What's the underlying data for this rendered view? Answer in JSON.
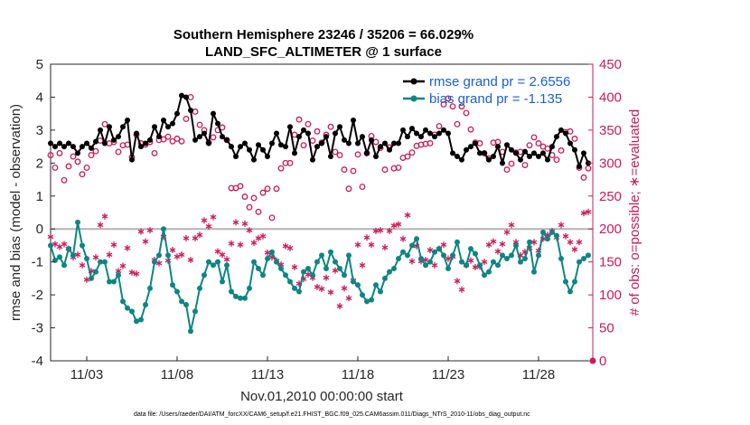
{
  "chart_data": {
    "type": "line",
    "title": "Southern Hemisphere 23246 / 35206 = 66.029%",
    "subtitle": "LAND_SFC_ALTIMETER @ 1 surface",
    "xlabel": "Nov.01,2010 00:00:00 start",
    "ylabel": "rmse and bias (model - observation)",
    "y2label": "# of obs: o=possible; ∗=evaluated",
    "footnote": "data file: /Users/raeder/DAI/ATM_forcXX/CAM6_setup/f.e21.FHIST_BGC.f09_025.CAM6assim.011/Diags_NTrS_2010-11/obs_diag_output.nc",
    "x_ticks": [
      "11/03",
      "11/08",
      "11/13",
      "11/18",
      "11/23",
      "11/28"
    ],
    "x_tick_days": [
      3,
      8,
      13,
      18,
      23,
      28
    ],
    "xlim": [
      1,
      31
    ],
    "ylim": [
      -4,
      5
    ],
    "y_ticks": [
      "-4",
      "-3",
      "-2",
      "-1",
      "0",
      "1",
      "2",
      "3",
      "4",
      "5"
    ],
    "y2lim": [
      0,
      450
    ],
    "y2_ticks": [
      "0",
      "50",
      "100",
      "150",
      "200",
      "250",
      "300",
      "350",
      "400",
      "450"
    ],
    "grid": false,
    "legend_position": "top-right",
    "colors": {
      "rmse": "#000000",
      "bias": "#0e8585",
      "obs": "#cc1a5a",
      "zero": "#b4b4b4"
    },
    "x": [
      1.0,
      1.25,
      1.5,
      1.75,
      2.0,
      2.25,
      2.5,
      2.75,
      3.0,
      3.25,
      3.5,
      3.75,
      4.0,
      4.25,
      4.5,
      4.75,
      5.0,
      5.25,
      5.5,
      5.75,
      6.0,
      6.25,
      6.5,
      6.75,
      7.0,
      7.25,
      7.5,
      7.75,
      8.0,
      8.25,
      8.5,
      8.75,
      9.0,
      9.25,
      9.5,
      9.75,
      10.0,
      10.25,
      10.5,
      10.75,
      11.0,
      11.25,
      11.5,
      11.75,
      12.0,
      12.25,
      12.5,
      12.75,
      13.0,
      13.25,
      13.5,
      13.75,
      14.0,
      14.25,
      14.5,
      14.75,
      15.0,
      15.25,
      15.5,
      15.75,
      16.0,
      16.25,
      16.5,
      16.75,
      17.0,
      17.25,
      17.5,
      17.75,
      18.0,
      18.25,
      18.5,
      18.75,
      19.0,
      19.25,
      19.5,
      19.75,
      20.0,
      20.25,
      20.5,
      20.75,
      21.0,
      21.25,
      21.5,
      21.75,
      22.0,
      22.25,
      22.5,
      22.75,
      23.0,
      23.25,
      23.5,
      23.75,
      24.0,
      24.25,
      24.5,
      24.75,
      25.0,
      25.25,
      25.5,
      25.75,
      26.0,
      26.25,
      26.5,
      26.75,
      27.0,
      27.25,
      27.5,
      27.75,
      28.0,
      28.25,
      28.5,
      28.75,
      29.0,
      29.25,
      29.5,
      29.75,
      30.0,
      30.25,
      30.5,
      30.75
    ],
    "series": [
      {
        "name": "rmse grand pr = 2.6556",
        "values": [
          2.6,
          2.5,
          2.6,
          2.5,
          2.6,
          2.5,
          2.3,
          2.5,
          2.6,
          2.45,
          2.65,
          3.0,
          2.6,
          3.1,
          2.7,
          2.8,
          3.1,
          3.3,
          2.1,
          2.9,
          2.5,
          2.6,
          2.7,
          3.1,
          2.8,
          3.3,
          3.1,
          3.2,
          3.5,
          4.05,
          4.0,
          3.6,
          2.7,
          2.8,
          2.9,
          2.6,
          3.5,
          3.2,
          2.8,
          2.7,
          2.5,
          2.2,
          2.5,
          2.6,
          2.4,
          2.1,
          2.55,
          2.4,
          2.2,
          2.6,
          2.9,
          2.55,
          2.5,
          3.1,
          2.3,
          2.8,
          3.0,
          2.9,
          2.1,
          2.5,
          2.6,
          2.8,
          2.2,
          2.9,
          3.1,
          2.7,
          2.6,
          3.3,
          2.6,
          2.8,
          2.3,
          2.7,
          2.2,
          2.5,
          2.6,
          2.4,
          2.6,
          2.6,
          3.0,
          2.8,
          3.05,
          2.9,
          2.8,
          3.0,
          2.9,
          2.8,
          2.9,
          3.0,
          2.9,
          2.3,
          2.2,
          2.1,
          2.4,
          2.5,
          2.6,
          2.3,
          2.3,
          2.1,
          2.2,
          2.5,
          2.0,
          2.55,
          2.4,
          2.3,
          2.1,
          2.35,
          2.2,
          2.3,
          2.2,
          2.3,
          2.1,
          2.5,
          2.8,
          3.0,
          2.9,
          2.6,
          2.4,
          1.9,
          2.3,
          2.0
        ]
      },
      {
        "name": "bias grand pr = -1.135",
        "values": [
          -0.5,
          -0.95,
          -0.85,
          -1.1,
          -0.6,
          -0.8,
          0.2,
          -0.5,
          -0.9,
          -1.5,
          -1.3,
          -1.0,
          -1.0,
          -1.6,
          -1.6,
          -1.4,
          -2.2,
          -2.4,
          -2.5,
          -2.8,
          -2.75,
          -2.3,
          -1.8,
          -1.0,
          -0.8,
          0.0,
          -0.8,
          -1.7,
          -1.9,
          -2.2,
          -2.3,
          -3.1,
          -2.5,
          -1.8,
          -1.4,
          -1.0,
          -1.1,
          -1.0,
          -1.6,
          -1.1,
          -1.9,
          -2.05,
          -2.1,
          -2.1,
          -1.8,
          -1.0,
          -1.2,
          -1.4,
          -0.9,
          -0.7,
          -1.0,
          -1.2,
          -1.4,
          -1.6,
          -1.8,
          -1.9,
          -1.3,
          -1.2,
          -1.4,
          -1.0,
          -0.8,
          -1.2,
          -0.7,
          -1.0,
          -1.2,
          -1.4,
          -0.8,
          -1.6,
          -1.7,
          -2.0,
          -2.2,
          -2.15,
          -1.7,
          -1.9,
          -1.5,
          -1.3,
          -1.2,
          -0.9,
          -0.7,
          -0.8,
          -0.5,
          -0.3,
          -0.9,
          -1.1,
          -1.0,
          -0.7,
          -0.6,
          -0.8,
          -1.2,
          -0.8,
          -0.4,
          -1.0,
          -1.1,
          -0.6,
          -0.75,
          -1.1,
          -1.4,
          -1.3,
          -1.0,
          -1.1,
          -0.8,
          -0.9,
          -0.8,
          -0.5,
          -1.0,
          -0.9,
          -0.4,
          -1.3,
          -0.8,
          -0.1,
          -0.3,
          -0.1,
          -0.2,
          -0.9,
          -1.6,
          -1.9,
          -1.6,
          -1.0,
          -0.9,
          -0.8
        ]
      }
    ],
    "obs_possible": [
      312,
      293,
      315,
      274,
      295,
      310,
      302,
      283,
      293,
      312,
      318,
      334,
      359,
      330,
      332,
      317,
      327,
      328,
      309,
      343,
      330,
      328,
      332,
      315,
      335,
      336,
      340,
      333,
      337,
      333,
      367,
      400,
      378,
      358,
      350,
      331,
      339,
      350,
      354,
      335,
      262,
      262,
      265,
      249,
      233,
      247,
      226,
      255,
      261,
      217,
      261,
      292,
      300,
      300,
      343,
      366,
      327,
      359,
      334,
      348,
      331,
      343,
      355,
      317,
      312,
      290,
      261,
      288,
      313,
      264,
      315,
      341,
      332,
      323,
      290,
      324,
      292,
      293,
      308,
      310,
      316,
      326,
      328,
      329,
      330,
      343,
      356,
      389,
      398,
      386,
      359,
      386,
      376,
      351,
      331,
      330,
      315,
      307,
      331,
      332,
      317,
      290,
      299,
      316,
      317,
      297,
      327,
      339,
      330,
      325,
      322,
      312,
      305,
      319,
      347,
      348,
      337,
      293,
      278,
      292
    ],
    "obs_evaluated": [
      188,
      177,
      173,
      177,
      170,
      157,
      161,
      145,
      123,
      136,
      157,
      206,
      219,
      161,
      176,
      136,
      144,
      171,
      134,
      132,
      196,
      181,
      198,
      153,
      148,
      188,
      152,
      168,
      158,
      161,
      186,
      153,
      186,
      191,
      213,
      204,
      218,
      166,
      161,
      154,
      178,
      210,
      176,
      208,
      198,
      179,
      186,
      189,
      164,
      157,
      152,
      146,
      174,
      171,
      142,
      117,
      124,
      131,
      126,
      112,
      109,
      126,
      104,
      137,
      83,
      110,
      95,
      122,
      176,
      145,
      187,
      176,
      197,
      198,
      172,
      197,
      205,
      207,
      185,
      221,
      151,
      174,
      151,
      153,
      168,
      145,
      170,
      176,
      155,
      158,
      121,
      108,
      145,
      152,
      142,
      143,
      150,
      176,
      181,
      166,
      177,
      195,
      206,
      180,
      160,
      165,
      171,
      180,
      167,
      185,
      191,
      197,
      187,
      206,
      189,
      180,
      169,
      180,
      224,
      226
    ]
  }
}
